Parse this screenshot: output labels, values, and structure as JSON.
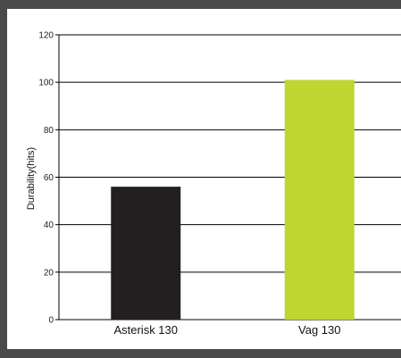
{
  "chart_data": {
    "type": "bar",
    "categories": [
      "Asterisk 130",
      "Vag 130"
    ],
    "values": [
      56,
      101
    ],
    "colors": [
      "#231f20",
      "#bed630"
    ],
    "title": "",
    "xlabel": "",
    "ylabel": "Durability(hits)",
    "ylim": [
      0,
      120
    ],
    "yticks": [
      "0",
      "20",
      "40",
      "60",
      "80",
      "100",
      "120"
    ],
    "grid": true,
    "legend": "none"
  },
  "colors": {
    "background": "#4a4a4a",
    "plot": "#ffffff",
    "grid": "#000000"
  }
}
